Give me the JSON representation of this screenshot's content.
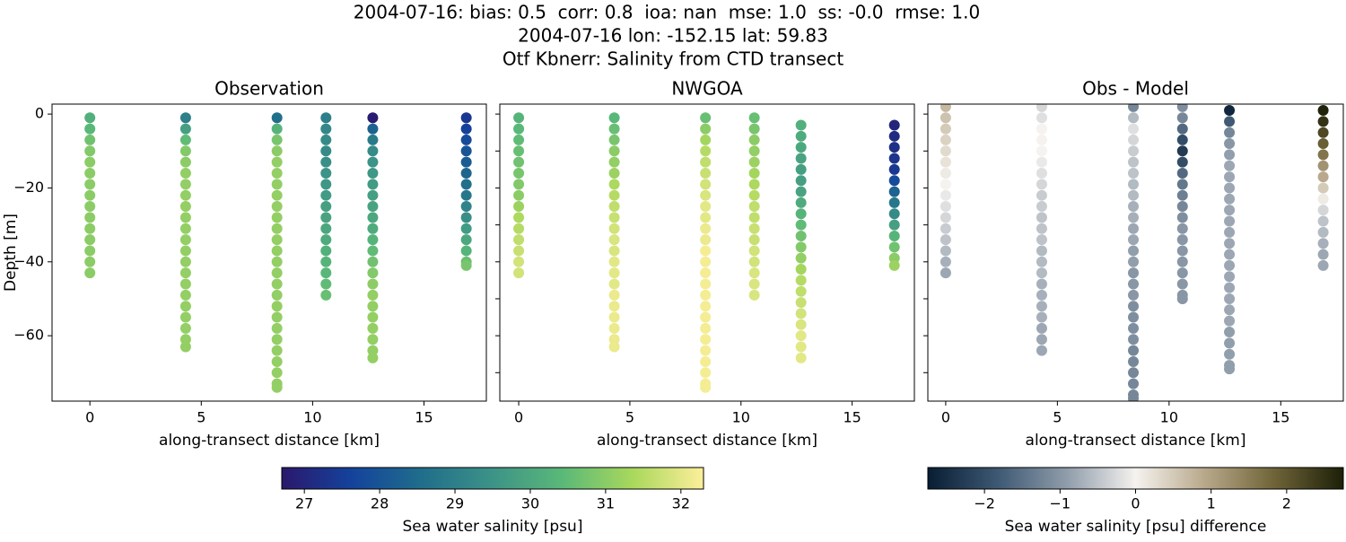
{
  "figure": {
    "title_lines": [
      "2004-07-16: bias: 0.5  corr: 0.8  ioa: nan  mse: 1.0  ss: -0.0  rmse: 1.0",
      "2004-07-16 lon: -152.15 lat: 59.83",
      "Otf Kbnerr: Salinity from CTD transect"
    ]
  },
  "colorbars": [
    {
      "label": "Sea water salinity [psu]",
      "clim": [
        26.7,
        32.3
      ],
      "colors": [
        "#2a186c",
        "#14439c",
        "#206e8b",
        "#3c9387",
        "#5ab978",
        "#aad85c",
        "#fdef9a"
      ],
      "ticks": [
        27,
        28,
        29,
        30,
        31,
        32
      ]
    },
    {
      "label": "Sea water salinity [psu] difference",
      "clim": [
        -2.75,
        2.75
      ],
      "colors": [
        "#081d33",
        "#3d5873",
        "#8f9caa",
        "#f5f2ef",
        "#b8a88a",
        "#6f6438",
        "#1c1f08"
      ],
      "ticks": [
        {
          "value": -2,
          "label": "−2"
        },
        {
          "value": -1,
          "label": "−1"
        },
        0,
        1,
        2
      ]
    }
  ],
  "chart_data": [
    {
      "type": "scatter",
      "title": "Observation",
      "xlabel": "along-transect distance [km]",
      "ylabel": "Depth [m]",
      "colorbar": 0,
      "xlim": [
        -1.7,
        17.8
      ],
      "ylim": [
        -77.7,
        2.7
      ],
      "xticks": [
        0,
        5,
        10,
        15
      ],
      "yticks": [
        0,
        {
          "value": -20,
          "label": "−20"
        },
        {
          "value": -40,
          "label": "−40"
        },
        {
          "value": -60,
          "label": "−60"
        }
      ],
      "series": [
        {
          "x": 0,
          "depth": [
            -1,
            -4,
            -7,
            -10,
            -13,
            -16,
            -19,
            -22,
            -25,
            -28,
            -31,
            -34,
            -37,
            -40,
            -43
          ],
          "values": [
            30.2,
            30.4,
            30.7,
            30.9,
            31,
            31,
            31,
            31,
            31,
            31,
            31,
            31,
            31,
            31,
            31
          ]
        },
        {
          "x": 4.3,
          "depth": [
            -1,
            -4,
            -7,
            -10,
            -13,
            -16,
            -19,
            -22,
            -25,
            -28,
            -31,
            -34,
            -37,
            -40,
            -43,
            -46,
            -49,
            -52,
            -55,
            -58,
            -61,
            -63
          ],
          "values": [
            29,
            29.8,
            30.5,
            30.9,
            31,
            31.1,
            31.1,
            31.1,
            31.1,
            31.1,
            31.1,
            31.1,
            31.1,
            31.1,
            31.1,
            31.1,
            31.1,
            31.1,
            31.1,
            31.1,
            31.1,
            31.1
          ]
        },
        {
          "x": 8.4,
          "depth": [
            -1,
            -4,
            -7,
            -10,
            -13,
            -16,
            -19,
            -22,
            -25,
            -28,
            -31,
            -34,
            -37,
            -40,
            -43,
            -46,
            -49,
            -52,
            -55,
            -58,
            -61,
            -64,
            -67,
            -70,
            -73,
            -74
          ],
          "values": [
            28.6,
            30.3,
            30.8,
            31,
            31.1,
            31.1,
            31.1,
            31.1,
            31.1,
            31.1,
            31.1,
            31.1,
            31.1,
            31.1,
            31.1,
            31.1,
            31.1,
            31.1,
            31.1,
            31.1,
            31.1,
            31.1,
            31.1,
            31.1,
            31.1,
            31.1
          ]
        },
        {
          "x": 10.6,
          "depth": [
            -1,
            -4,
            -7,
            -10,
            -13,
            -16,
            -19,
            -22,
            -25,
            -28,
            -31,
            -34,
            -37,
            -40,
            -43,
            -46,
            -49
          ],
          "values": [
            29,
            29.2,
            29.3,
            29.3,
            29.4,
            29.5,
            29.6,
            29.7,
            29.8,
            29.9,
            30,
            30.1,
            30.2,
            30.3,
            30.4,
            30.5,
            30.6
          ]
        },
        {
          "x": 12.7,
          "depth": [
            -1,
            -4,
            -7,
            -10,
            -13,
            -16,
            -19,
            -22,
            -25,
            -28,
            -31,
            -34,
            -37,
            -40,
            -43,
            -46,
            -49,
            -52,
            -55,
            -58,
            -61,
            -64,
            -66
          ],
          "values": [
            26.8,
            28.3,
            28.9,
            29.3,
            29.5,
            29.6,
            29.7,
            29.8,
            29.9,
            30,
            30.1,
            30.3,
            30.5,
            30.7,
            30.9,
            31,
            31.1,
            31.1,
            31.1,
            31.1,
            31.1,
            31.1,
            31.1
          ]
        },
        {
          "x": 16.9,
          "depth": [
            -1,
            -4,
            -7,
            -10,
            -13,
            -16,
            -19,
            -22,
            -25,
            -28,
            -31,
            -34,
            -37,
            -40,
            -41
          ],
          "values": [
            27.4,
            27.6,
            27.8,
            28,
            28.2,
            28.4,
            28.6,
            28.8,
            29.1,
            29.4,
            29.7,
            30,
            30.3,
            30.6,
            30.8
          ]
        }
      ]
    },
    {
      "type": "scatter",
      "title": "NWGOA",
      "xlabel": "along-transect distance [km]",
      "colorbar": 0,
      "xlim": [
        -0.85,
        17.8
      ],
      "ylim": [
        -77.7,
        2.7
      ],
      "xticks": [
        0,
        5,
        10,
        15
      ],
      "yticks": [
        0,
        -10,
        -20,
        -30,
        -40,
        -50,
        -60,
        -70
      ],
      "ytick_labels": false,
      "series": [
        {
          "x": 0,
          "depth": [
            -1,
            -4,
            -7,
            -10,
            -13,
            -16,
            -19,
            -22,
            -25,
            -28,
            -31,
            -34,
            -37,
            -40,
            -43
          ],
          "values": [
            30.3,
            30.4,
            30.5,
            30.6,
            30.7,
            30.8,
            30.9,
            31,
            31.2,
            31.4,
            31.5,
            31.6,
            31.7,
            31.8,
            31.8
          ]
        },
        {
          "x": 4.3,
          "depth": [
            -1,
            -4,
            -7,
            -10,
            -13,
            -16,
            -19,
            -22,
            -25,
            -28,
            -31,
            -34,
            -37,
            -40,
            -43,
            -46,
            -49,
            -52,
            -55,
            -58,
            -61,
            -63
          ],
          "values": [
            30.4,
            30.6,
            30.8,
            31,
            31.1,
            31.2,
            31.4,
            31.5,
            31.6,
            31.7,
            31.8,
            31.9,
            31.9,
            32,
            32,
            32,
            32.1,
            32.1,
            32.1,
            32.1,
            32.1,
            32.1
          ]
        },
        {
          "x": 8.4,
          "depth": [
            -1,
            -4,
            -7,
            -10,
            -13,
            -16,
            -19,
            -22,
            -25,
            -28,
            -31,
            -34,
            -37,
            -40,
            -43,
            -46,
            -49,
            -52,
            -55,
            -58,
            -61,
            -64,
            -67,
            -70,
            -73,
            -74
          ],
          "values": [
            30.6,
            31,
            31.3,
            31.5,
            31.6,
            31.7,
            31.8,
            31.9,
            32,
            32,
            32.1,
            32.1,
            32.2,
            32.2,
            32.2,
            32.2,
            32.2,
            32.2,
            32.2,
            32.2,
            32.2,
            32.2,
            32.2,
            32.2,
            32.2,
            32.2
          ]
        },
        {
          "x": 10.6,
          "depth": [
            -1,
            -4,
            -7,
            -10,
            -13,
            -16,
            -19,
            -22,
            -25,
            -28,
            -31,
            -34,
            -37,
            -40,
            -43,
            -46,
            -49
          ],
          "values": [
            30.6,
            30.8,
            31,
            31.1,
            31.2,
            31.3,
            31.4,
            31.5,
            31.6,
            31.6,
            31.7,
            31.7,
            31.8,
            31.8,
            31.9,
            31.9,
            31.9
          ]
        },
        {
          "x": 12.7,
          "depth": [
            -3,
            -6,
            -9,
            -12,
            -15,
            -18,
            -21,
            -24,
            -27,
            -30,
            -33,
            -36,
            -39,
            -42,
            -45,
            -48,
            -51,
            -54,
            -57,
            -60,
            -63,
            -66
          ],
          "values": [
            30.2,
            30.1,
            30,
            29.9,
            29.8,
            29.8,
            29.9,
            30.1,
            30.3,
            30.5,
            30.7,
            30.9,
            31.1,
            31.3,
            31.5,
            31.6,
            31.7,
            31.8,
            31.9,
            32,
            32,
            32
          ]
        },
        {
          "x": 16.9,
          "depth": [
            -3,
            -6,
            -9,
            -12,
            -15,
            -18,
            -21,
            -24,
            -27,
            -30,
            -33,
            -36,
            -39,
            -41
          ],
          "values": [
            27,
            27.1,
            27.2,
            27.3,
            27.4,
            27.8,
            28.3,
            28.8,
            29.3,
            29.8,
            30.3,
            30.7,
            31,
            31.2
          ]
        }
      ]
    },
    {
      "type": "scatter",
      "title": "Obs - Model",
      "xlabel": "along-transect distance [km]",
      "colorbar": 1,
      "xlim": [
        -0.8,
        17.8
      ],
      "ylim": [
        -77.7,
        2.7
      ],
      "xticks": [
        0,
        5,
        10,
        15
      ],
      "yticks": [
        0,
        -10,
        -20,
        -30,
        -40,
        -50,
        -60,
        -70
      ],
      "ytick_labels": false,
      "series": [
        {
          "x": 0,
          "depth": [
            2,
            -1,
            -4,
            -7,
            -10,
            -13,
            -16,
            -19,
            -22,
            -25,
            -28,
            -31,
            -34,
            -37,
            -40,
            -43
          ],
          "values": [
            0.7,
            0.6,
            0.5,
            0.4,
            0.3,
            0.2,
            0.1,
            0,
            -0.1,
            -0.2,
            -0.3,
            -0.4,
            -0.5,
            -0.6,
            -0.7,
            -0.8
          ]
        },
        {
          "x": 4.3,
          "depth": [
            2,
            -1,
            -4,
            -7,
            -10,
            -13,
            -16,
            -19,
            -22,
            -25,
            -28,
            -31,
            -34,
            -37,
            -40,
            -43,
            -46,
            -49,
            -52,
            -55,
            -58,
            -61,
            -64
          ],
          "values": [
            -0.3,
            -0.2,
            0,
            0,
            0,
            -0.1,
            -0.2,
            -0.3,
            -0.4,
            -0.4,
            -0.5,
            -0.5,
            -0.5,
            -0.6,
            -0.6,
            -0.6,
            -0.7,
            -0.7,
            -0.7,
            -0.7,
            -0.8,
            -0.8,
            -0.8
          ]
        },
        {
          "x": 8.4,
          "depth": [
            2,
            -1,
            -4,
            -7,
            -10,
            -13,
            -16,
            -19,
            -22,
            -25,
            -28,
            -31,
            -34,
            -37,
            -40,
            -43,
            -46,
            -49,
            -52,
            -55,
            -58,
            -61,
            -64,
            -67,
            -70,
            -73,
            -76,
            -77
          ],
          "values": [
            -1.2,
            -0.6,
            -0.2,
            -0.3,
            -0.4,
            -0.5,
            -0.5,
            -0.6,
            -0.6,
            -0.7,
            -0.7,
            -0.8,
            -0.8,
            -0.9,
            -0.9,
            -1,
            -1,
            -1,
            -1.1,
            -1.1,
            -1.1,
            -1.1,
            -1.2,
            -1.2,
            -1.2,
            -1.2,
            -1.2,
            -1.2
          ]
        },
        {
          "x": 10.6,
          "depth": [
            2,
            -1,
            -4,
            -7,
            -10,
            -13,
            -16,
            -19,
            -22,
            -25,
            -28,
            -31,
            -34,
            -37,
            -40,
            -43,
            -46,
            -49,
            -50
          ],
          "values": [
            -1.1,
            -1.2,
            -1.6,
            -2,
            -2.3,
            -2,
            -1.6,
            -1.4,
            -1.3,
            -1.2,
            -1.1,
            -1,
            -1,
            -1,
            -1,
            -1,
            -1,
            -1,
            -1
          ]
        },
        {
          "x": 12.7,
          "depth": [
            1,
            -2,
            -5,
            -8,
            -11,
            -14,
            -17,
            -20,
            -23,
            -26,
            -29,
            -32,
            -35,
            -38,
            -41,
            -44,
            -47,
            -50,
            -53,
            -56,
            -59,
            -62,
            -65,
            -68,
            -69
          ],
          "values": [
            -2.6,
            -1.8,
            -1.2,
            -1,
            -0.9,
            -0.8,
            -0.8,
            -0.8,
            -0.8,
            -0.8,
            -0.8,
            -0.8,
            -0.8,
            -0.8,
            -0.8,
            -0.8,
            -0.8,
            -0.8,
            -0.8,
            -0.8,
            -0.9,
            -0.9,
            -0.9,
            -0.9,
            -0.9
          ]
        },
        {
          "x": 16.9,
          "depth": [
            1,
            -2,
            -5,
            -8,
            -11,
            -14,
            -17,
            -20,
            -23,
            -26,
            -29,
            -32,
            -35,
            -38,
            -41
          ],
          "values": [
            2.7,
            2.5,
            2.2,
            1.9,
            1.6,
            1.2,
            0.9,
            0.5,
            0.1,
            -0.3,
            -0.5,
            -0.6,
            -0.7,
            -0.8,
            -0.8
          ]
        }
      ]
    }
  ]
}
